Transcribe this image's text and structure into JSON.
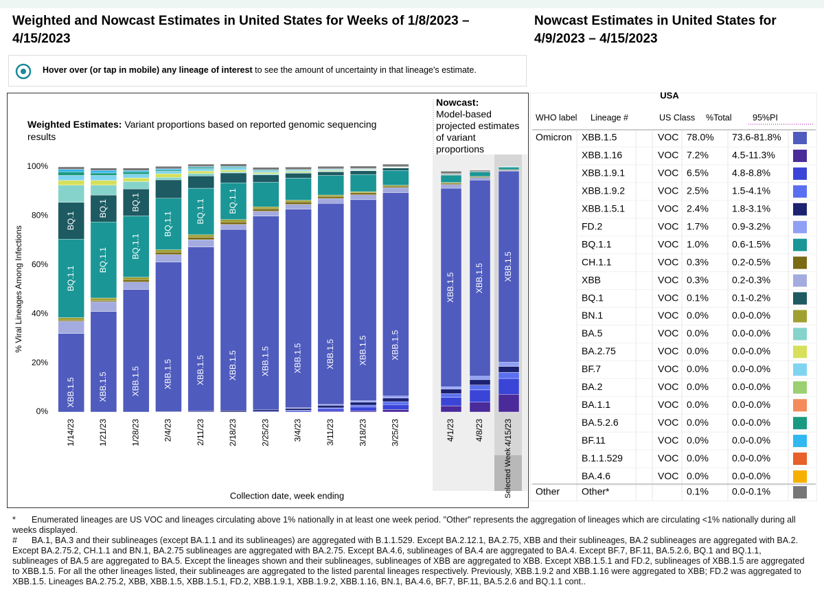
{
  "header": {
    "left_title": "Weighted and Nowcast Estimates in United States for Weeks of 1/8/2023 – 4/15/2023",
    "right_title": "Nowcast Estimates in United States for 4/9/2023 – 4/15/2023"
  },
  "hover_note": {
    "bold": "Hover over (or tap in mobile) any lineage of interest",
    "rest": " to see the amount of uncertainty in that lineage's estimate."
  },
  "chart_data": [
    {
      "type": "bar",
      "stacked": true,
      "title_bold": "Weighted Estimates:",
      "title": "Variant proportions based on reported genomic sequencing results",
      "ylabel": "% Viral Lineages Among Infections",
      "xlabel": "Collection date, week ending",
      "categories": [
        "1/14/23",
        "1/21/23",
        "1/28/23",
        "2/4/23",
        "2/11/23",
        "2/18/23",
        "2/25/23",
        "3/4/23",
        "3/11/23",
        "3/18/23",
        "3/25/23"
      ],
      "ylim": [
        0,
        100
      ],
      "yticks": [
        {
          "value": 0,
          "label": "0%"
        },
        {
          "value": 20,
          "label": "20%"
        },
        {
          "value": 40,
          "label": "40%"
        },
        {
          "value": 60,
          "label": "60%"
        },
        {
          "value": 80,
          "label": "80%"
        },
        {
          "value": 100,
          "label": "100%"
        }
      ],
      "grid": false,
      "series": [
        {
          "name": "XBB.1.16",
          "color": "#4b2a9a",
          "values": [
            0,
            0,
            0,
            0,
            0,
            0,
            0,
            0,
            0.3,
            0.5,
            1
          ]
        },
        {
          "name": "XBB.1.9.1",
          "color": "#3a45d8",
          "values": [
            0,
            0,
            0,
            0,
            0,
            0,
            0.3,
            0.5,
            1,
            1.5,
            2
          ]
        },
        {
          "name": "XBB.1.9.2",
          "color": "#5a70f0",
          "values": [
            0,
            0,
            0,
            0,
            0,
            0,
            0,
            0.2,
            0.4,
            0.8,
            1.2
          ]
        },
        {
          "name": "XBB.1.5.1",
          "color": "#1c2270",
          "values": [
            0,
            0,
            0,
            0.2,
            0.3,
            0.5,
            0.6,
            0.8,
            1,
            1.2,
            1.5
          ]
        },
        {
          "name": "FD.2",
          "color": "#8fa0f5",
          "values": [
            0,
            0,
            0,
            0,
            0,
            0,
            0,
            0.2,
            0.4,
            0.6,
            0.8
          ]
        },
        {
          "name": "XBB.1.5",
          "color": "#4f5bbd",
          "values": [
            32,
            41,
            50,
            61,
            67,
            74,
            79,
            81,
            82,
            82,
            83
          ]
        },
        {
          "name": "XBB",
          "color": "#a3abdf",
          "values": [
            5,
            4,
            3,
            3,
            3,
            2,
            2,
            2,
            2,
            2,
            2
          ]
        },
        {
          "name": "CH.1.1",
          "color": "#7a6a14",
          "values": [
            0.5,
            0.5,
            1,
            1,
            1,
            1,
            1,
            1,
            0.8,
            0.8,
            0.6
          ]
        },
        {
          "name": "BN.1",
          "color": "#a0a030",
          "values": [
            1,
            1,
            1,
            1,
            1,
            1,
            0.8,
            0.7,
            0.6,
            0.5,
            0.4
          ]
        },
        {
          "name": "BQ.1.1",
          "color": "#1a9696",
          "values": [
            32,
            31,
            25,
            21,
            19,
            15,
            10,
            9,
            8,
            7,
            6
          ]
        },
        {
          "name": "BQ.1",
          "color": "#1d5a62",
          "values": [
            15,
            11,
            11,
            7.5,
            5,
            4,
            3,
            2,
            1.5,
            1.5,
            1
          ]
        },
        {
          "name": "BA.5",
          "color": "#86d3cb",
          "values": [
            7,
            4,
            3,
            1,
            1,
            0.5,
            0.5,
            0.3,
            0.2,
            0.2,
            0.1
          ]
        },
        {
          "name": "BA.2.75",
          "color": "#d6e05a",
          "values": [
            2,
            2,
            1.5,
            1.5,
            1,
            0.7,
            0.5,
            0.4,
            0.3,
            0.2,
            0.2
          ]
        },
        {
          "name": "BF.7",
          "color": "#80d4f0",
          "values": [
            2,
            2,
            1.5,
            1,
            1,
            0.8,
            0.6,
            0.5,
            0.4,
            0.3,
            0.2
          ]
        },
        {
          "name": "BA.5.2.6",
          "color": "#1a9a80",
          "values": [
            1.5,
            1,
            1,
            0.5,
            0.5,
            0.4,
            0.3,
            0.2,
            0.2,
            0.1,
            0.1
          ]
        },
        {
          "name": "BF.11",
          "color": "#30b8f0",
          "values": [
            1,
            1,
            0.5,
            0.5,
            0.3,
            0.3,
            0.2,
            0.1,
            0.1,
            0.1,
            0
          ]
        },
        {
          "name": "Other*",
          "color": "#777777",
          "values": [
            1,
            1,
            1,
            1,
            1,
            1,
            1,
            1,
            1,
            1,
            1
          ]
        }
      ]
    },
    {
      "type": "bar",
      "stacked": true,
      "title_bold": "Nowcast:",
      "title": "Model-based projected estimates of variant proportions",
      "categories": [
        "4/1/23",
        "4/8/23",
        "4/15/23"
      ],
      "selected": "Selected Week",
      "ylim": [
        0,
        100
      ],
      "series": [
        {
          "name": "XBB.1.16",
          "color": "#4b2a9a",
          "values": [
            2.5,
            4,
            7.2
          ]
        },
        {
          "name": "XBB.1.9.1",
          "color": "#3a45d8",
          "values": [
            3.5,
            5,
            6.5
          ]
        },
        {
          "name": "XBB.1.9.2",
          "color": "#5a70f0",
          "values": [
            1.5,
            2,
            2.5
          ]
        },
        {
          "name": "XBB.1.5.1",
          "color": "#1c2270",
          "values": [
            1.8,
            2.2,
            2.4
          ]
        },
        {
          "name": "FD.2",
          "color": "#8fa0f5",
          "values": [
            1,
            1.4,
            1.7
          ]
        },
        {
          "name": "XBB.1.5",
          "color": "#4f5bbd",
          "values": [
            81,
            80,
            78
          ]
        },
        {
          "name": "XBB",
          "color": "#a3abdf",
          "values": [
            1.5,
            1,
            0.3
          ]
        },
        {
          "name": "CH.1.1",
          "color": "#7a6a14",
          "values": [
            0.5,
            0.4,
            0.3
          ]
        },
        {
          "name": "BN.1",
          "color": "#a0a030",
          "values": [
            0.3,
            0.1,
            0
          ]
        },
        {
          "name": "BQ.1.1",
          "color": "#1a9696",
          "values": [
            3,
            1.8,
            1
          ]
        },
        {
          "name": "BQ.1",
          "color": "#1d5a62",
          "values": [
            0.3,
            0.2,
            0.1
          ]
        },
        {
          "name": "BA.5",
          "color": "#86d3cb",
          "values": [
            0.1,
            0,
            0
          ]
        },
        {
          "name": "BA.2.75",
          "color": "#d6e05a",
          "values": [
            0.1,
            0,
            0
          ]
        },
        {
          "name": "BF.7",
          "color": "#80d4f0",
          "values": [
            0.1,
            0,
            0
          ]
        },
        {
          "name": "Other*",
          "color": "#777777",
          "values": [
            1,
            0.5,
            0.1
          ]
        }
      ]
    }
  ],
  "table": {
    "region": "USA",
    "columns": [
      "WHO label",
      "Lineage #",
      "US Class",
      "%Total",
      "95%PI"
    ],
    "rows": [
      {
        "who": "Omicron",
        "lineage": "XBB.1.5",
        "class": "VOC",
        "total": "78.0%",
        "pi": "73.6-81.8%",
        "color": "#4f5bbd"
      },
      {
        "lineage": "XBB.1.16",
        "class": "VOC",
        "total": "7.2%",
        "pi": "4.5-11.3%",
        "color": "#4b2a9a"
      },
      {
        "lineage": "XBB.1.9.1",
        "class": "VOC",
        "total": "6.5%",
        "pi": "4.8-8.8%",
        "color": "#3a45d8"
      },
      {
        "lineage": "XBB.1.9.2",
        "class": "VOC",
        "total": "2.5%",
        "pi": "1.5-4.1%",
        "color": "#5a70f0"
      },
      {
        "lineage": "XBB.1.5.1",
        "class": "VOC",
        "total": "2.4%",
        "pi": "1.8-3.1%",
        "color": "#1c2270"
      },
      {
        "lineage": "FD.2",
        "class": "VOC",
        "total": "1.7%",
        "pi": "0.9-3.2%",
        "color": "#8fa0f5"
      },
      {
        "lineage": "BQ.1.1",
        "class": "VOC",
        "total": "1.0%",
        "pi": "0.6-1.5%",
        "color": "#1a9696"
      },
      {
        "lineage": "CH.1.1",
        "class": "VOC",
        "total": "0.3%",
        "pi": "0.2-0.5%",
        "color": "#7a6a14"
      },
      {
        "lineage": "XBB",
        "class": "VOC",
        "total": "0.3%",
        "pi": "0.2-0.3%",
        "color": "#a3abdf"
      },
      {
        "lineage": "BQ.1",
        "class": "VOC",
        "total": "0.1%",
        "pi": "0.1-0.2%",
        "color": "#1d5a62"
      },
      {
        "lineage": "BN.1",
        "class": "VOC",
        "total": "0.0%",
        "pi": "0.0-0.0%",
        "color": "#a0a030"
      },
      {
        "lineage": "BA.5",
        "class": "VOC",
        "total": "0.0%",
        "pi": "0.0-0.0%",
        "color": "#86d3cb"
      },
      {
        "lineage": "BA.2.75",
        "class": "VOC",
        "total": "0.0%",
        "pi": "0.0-0.0%",
        "color": "#d6e05a"
      },
      {
        "lineage": "BF.7",
        "class": "VOC",
        "total": "0.0%",
        "pi": "0.0-0.0%",
        "color": "#80d4f0"
      },
      {
        "lineage": "BA.2",
        "class": "VOC",
        "total": "0.0%",
        "pi": "0.0-0.0%",
        "color": "#9ad070"
      },
      {
        "lineage": "BA.1.1",
        "class": "VOC",
        "total": "0.0%",
        "pi": "0.0-0.0%",
        "color": "#f58a5a"
      },
      {
        "lineage": "BA.5.2.6",
        "class": "VOC",
        "total": "0.0%",
        "pi": "0.0-0.0%",
        "color": "#1a9a80"
      },
      {
        "lineage": "BF.11",
        "class": "VOC",
        "total": "0.0%",
        "pi": "0.0-0.0%",
        "color": "#30b8f0"
      },
      {
        "lineage": "B.1.1.529",
        "class": "VOC",
        "total": "0.0%",
        "pi": "0.0-0.0%",
        "color": "#e8602a"
      },
      {
        "lineage": "BA.4.6",
        "class": "VOC",
        "total": "0.0%",
        "pi": "0.0-0.0%",
        "color": "#f8b000"
      },
      {
        "who": "Other",
        "lineage": "Other*",
        "total": "0.1%",
        "pi": "0.0-0.1%",
        "color": "#777777"
      }
    ]
  },
  "footnotes": [
    {
      "marker": "*",
      "text": "Enumerated lineages are US VOC and lineages circulating above 1% nationally in at least one week period. \"Other\" represents the aggregation of lineages which are circulating <1% nationally during all weeks displayed."
    },
    {
      "marker": "#",
      "text": "BA.1, BA.3 and their sublineages (except BA.1.1 and its sublineages) are aggregated with B.1.1.529. Except BA.2.12.1, BA.2.75, XBB and their sublineages, BA.2 sublineages are aggregated with BA.2. Except BA.2.75.2, CH.1.1 and BN.1, BA.2.75 sublineages are aggregated with BA.2.75. Except BA.4.6, sublineages of BA.4 are aggregated to BA.4. Except BF.7, BF.11, BA.5.2.6, BQ.1 and BQ.1.1, sublineages of BA.5 are aggregated to BA.5. Except the lineages shown and their sublineages, sublineages of XBB are aggregated to XBB. Except XBB.1.5.1 and FD.2, sublineages of XBB.1.5 are aggregated to XBB.1.5. For all the other lineages listed, their sublineages are aggregated to the listed parental lineages respectively. Previously, XBB.1.9.2 and XBB.1.16 were aggregated to XBB; FD.2 was aggregated to XBB.1.5. Lineages BA.2.75.2, XBB, XBB.1.5, XBB.1.5.1, FD.2, XBB.1.9.1, XBB.1.9.2, XBB.1.16, BN.1, BA.4.6, BF.7, BF.11, BA.5.2.6 and BQ.1.1 cont.."
    }
  ]
}
